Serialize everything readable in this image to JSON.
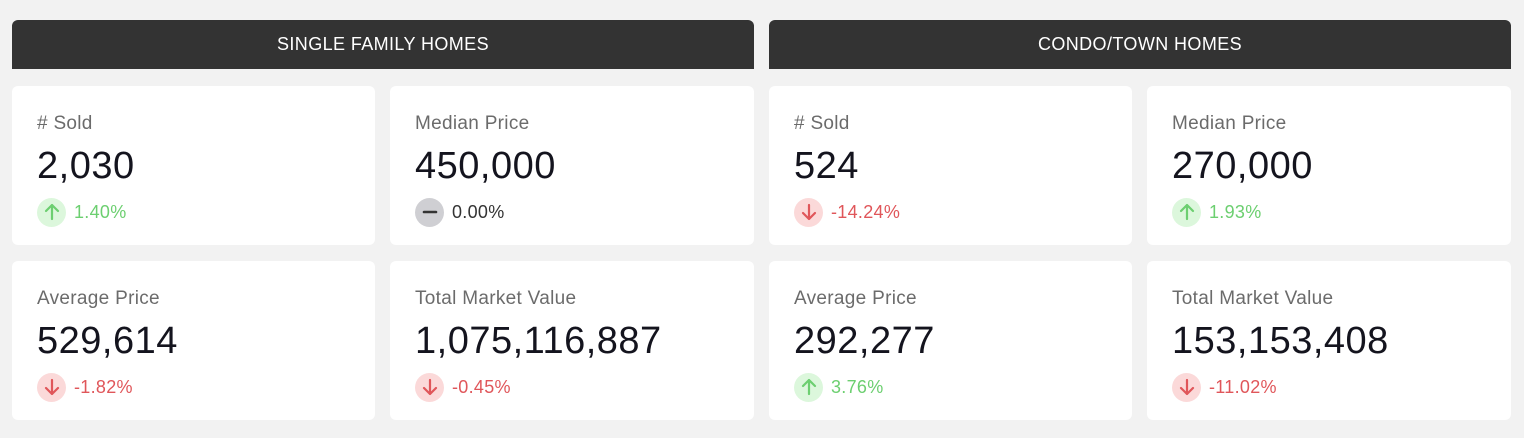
{
  "sections": [
    {
      "title": "SINGLE FAMILY HOMES",
      "cards": [
        {
          "label": "# Sold",
          "value": "2,030",
          "change": "1.40%",
          "trend": "up",
          "icon": "arrow-up-icon"
        },
        {
          "label": "Median Price",
          "value": "450,000",
          "change": "0.00%",
          "trend": "flat",
          "icon": "minus-icon"
        },
        {
          "label": "Average Price",
          "value": "529,614",
          "change": "-1.82%",
          "trend": "down",
          "icon": "arrow-down-icon"
        },
        {
          "label": "Total Market Value",
          "value": "1,075,116,887",
          "change": "-0.45%",
          "trend": "down",
          "icon": "arrow-down-icon"
        }
      ]
    },
    {
      "title": "CONDO/TOWN HOMES",
      "cards": [
        {
          "label": "# Sold",
          "value": "524",
          "change": "-14.24%",
          "trend": "down",
          "icon": "arrow-down-icon"
        },
        {
          "label": "Median Price",
          "value": "270,000",
          "change": "1.93%",
          "trend": "up",
          "icon": "arrow-up-icon"
        },
        {
          "label": "Average Price",
          "value": "292,277",
          "change": "3.76%",
          "trend": "up",
          "icon": "arrow-up-icon"
        },
        {
          "label": "Total Market Value",
          "value": "153,153,408",
          "change": "-11.02%",
          "trend": "down",
          "icon": "arrow-down-icon"
        }
      ]
    }
  ],
  "colors": {
    "header_bg": "#333333",
    "up": "#6ccf70",
    "down": "#e0565a",
    "flat": "#333333"
  }
}
